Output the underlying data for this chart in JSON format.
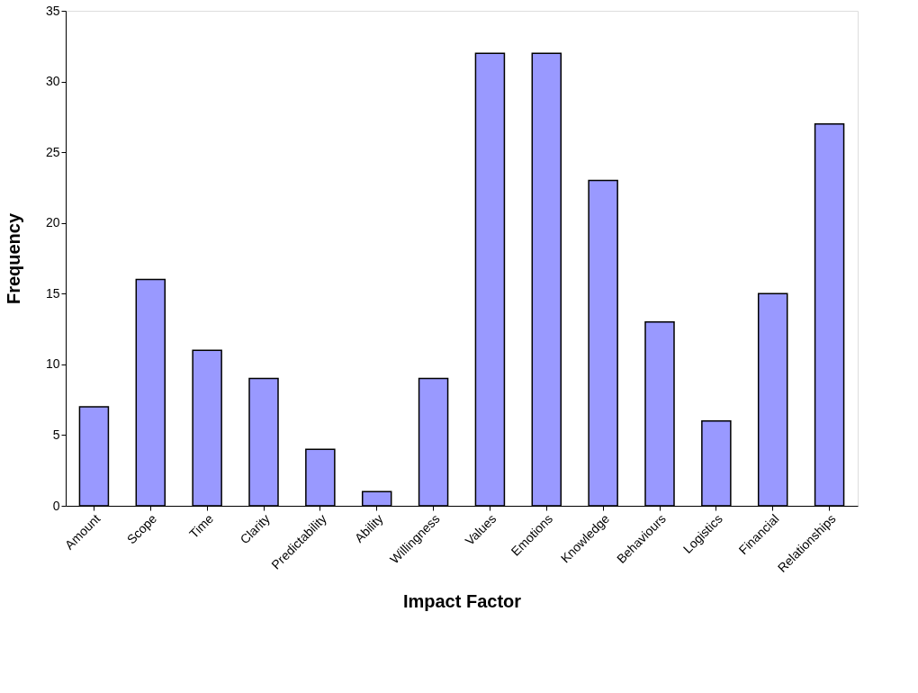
{
  "chart_data": {
    "type": "bar",
    "xlabel": "Impact Factor",
    "ylabel": "Frequency",
    "categories": [
      "Amount",
      "Scope",
      "Time",
      "Clarity",
      "Predictability",
      "Ability",
      "Willingness",
      "Values",
      "Emotions",
      "Knowledge",
      "Behaviours",
      "Logistics",
      "Financial",
      "Relationships"
    ],
    "values": [
      7,
      16,
      11,
      9,
      4,
      1,
      9,
      32,
      32,
      23,
      13,
      6,
      15,
      27
    ],
    "color": "#9999ff",
    "ylim": [
      0,
      35
    ],
    "yticks": [
      0,
      5,
      10,
      15,
      20,
      25,
      30,
      35
    ],
    "grid": false
  }
}
